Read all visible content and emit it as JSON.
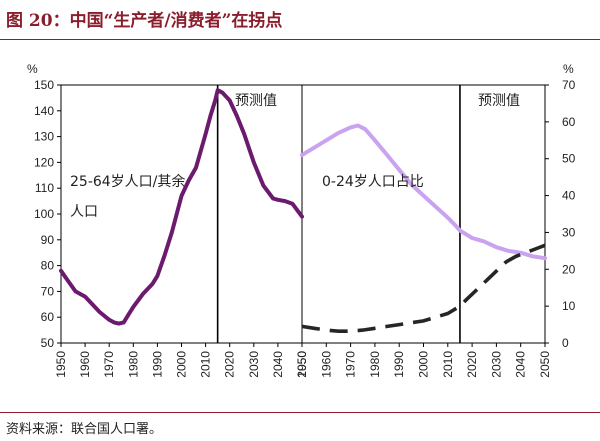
{
  "figure": {
    "title": "图 20：中国“生产者/消费者”在拐点",
    "source": "资料来源：联合国人口署。"
  },
  "colors": {
    "title": "#8b1e2d",
    "series_dark": "#6b1a6e",
    "series_light": "#c9a3ef",
    "series_dashed": "#262626",
    "frame": "#000000"
  },
  "chart_data": [
    {
      "type": "line",
      "y_unit": "%",
      "ylim": [
        50,
        150
      ],
      "y_ticks": [
        50,
        60,
        70,
        80,
        90,
        100,
        110,
        120,
        130,
        140,
        150
      ],
      "x_range": [
        1950,
        2050
      ],
      "x_ticks": [
        1950,
        1960,
        1970,
        1980,
        1990,
        2000,
        2010,
        2020,
        2030,
        2040,
        2050
      ],
      "divider_x": 2015,
      "annotations": [
        "25-64岁人口/其余",
        "人口",
        "预测值"
      ],
      "series": [
        {
          "name": "25-64岁人口/其余人口",
          "style": "solid",
          "x": [
            1950,
            1953,
            1956,
            1960,
            1963,
            1966,
            1970,
            1972,
            1974,
            1976,
            1978,
            1980,
            1984,
            1988,
            1990,
            1993,
            1996,
            2000,
            2003,
            2006,
            2010,
            2012,
            2014,
            2015,
            2017,
            2020,
            2023,
            2026,
            2030,
            2034,
            2038,
            2040,
            2043,
            2046,
            2050
          ],
          "values": [
            78,
            74,
            70,
            68,
            65,
            62,
            59,
            58,
            57.5,
            58,
            61,
            64,
            69,
            73,
            76,
            84,
            93,
            107,
            113,
            118,
            131,
            138,
            144,
            148,
            147,
            144,
            138,
            131,
            120,
            111,
            106,
            105.5,
            105,
            104,
            99
          ]
        }
      ]
    },
    {
      "type": "line",
      "y_unit": "%",
      "ylim": [
        0,
        70
      ],
      "y_ticks": [
        0,
        10,
        20,
        30,
        40,
        50,
        60,
        70
      ],
      "x_range": [
        1950,
        2050
      ],
      "x_ticks": [
        1950,
        1960,
        1970,
        1980,
        1990,
        2000,
        2010,
        2020,
        2030,
        2040,
        2050
      ],
      "divider_x": 2015,
      "annotations": [
        "0-24岁人口占比",
        "预测值"
      ],
      "series": [
        {
          "name": "0-24岁人口占比",
          "style": "solid",
          "x": [
            1950,
            1955,
            1960,
            1965,
            1970,
            1973,
            1976,
            1980,
            1985,
            1990,
            1995,
            2000,
            2005,
            2010,
            2013,
            2015,
            2020,
            2025,
            2030,
            2035,
            2040,
            2045,
            2050
          ],
          "values": [
            51,
            53,
            55,
            57,
            58.5,
            59,
            58,
            55,
            51,
            47,
            43,
            40,
            37,
            34,
            32,
            30.5,
            28.5,
            27.5,
            26,
            25,
            24.5,
            23.5,
            23
          ]
        },
        {
          "name": "",
          "style": "dashed",
          "x": [
            1950,
            1955,
            1960,
            1965,
            1970,
            1975,
            1980,
            1985,
            1990,
            1995,
            2000,
            2005,
            2010,
            2015,
            2018,
            2022,
            2026,
            2030,
            2034,
            2038,
            2042,
            2046,
            2050
          ],
          "values": [
            4.5,
            4,
            3.5,
            3.2,
            3.2,
            3.5,
            4,
            4.5,
            5,
            5.5,
            6,
            7,
            8,
            10,
            12,
            14.5,
            17,
            19.5,
            22,
            23.5,
            24.5,
            25.5,
            26.5
          ]
        }
      ]
    }
  ]
}
